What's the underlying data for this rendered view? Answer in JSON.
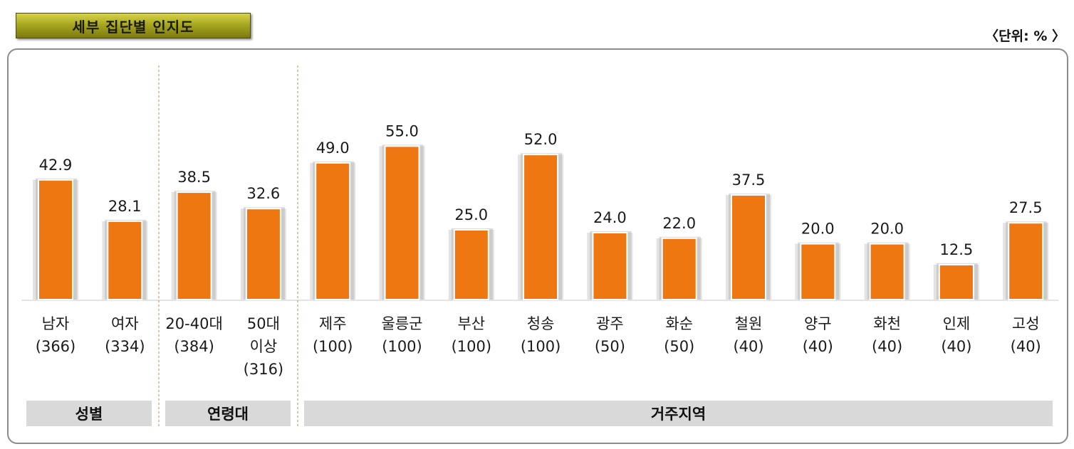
{
  "title": "세부 집단별 인지도",
  "unit_label": "〈단위: % 〉",
  "groups": [
    {
      "label": "성별"
    },
    {
      "label": "연령대"
    },
    {
      "label": "거주지역"
    }
  ],
  "colors": {
    "bar": "#ee7712",
    "bar_shadow": "#b0b0b0",
    "frame": "#8c8c8c",
    "group_box": "#d9d9d9",
    "divider": "#b9a27c"
  },
  "chart_data": {
    "type": "bar",
    "title": "세부 집단별 인지도",
    "ylim": [
      0,
      60
    ],
    "grid": false,
    "categories": [
      {
        "lines": [
          "남자",
          "(366)"
        ],
        "group": "성별"
      },
      {
        "lines": [
          "여자",
          "(334)"
        ],
        "group": "성별"
      },
      {
        "lines": [
          "20-40대",
          "(384)"
        ],
        "group": "연령대"
      },
      {
        "lines": [
          "50대",
          "이상",
          "(316)"
        ],
        "group": "연령대"
      },
      {
        "lines": [
          "제주",
          "(100)"
        ],
        "group": "거주지역"
      },
      {
        "lines": [
          "울릉군",
          "(100)"
        ],
        "group": "거주지역"
      },
      {
        "lines": [
          "부산",
          "(100)"
        ],
        "group": "거주지역"
      },
      {
        "lines": [
          "청송",
          "(100)"
        ],
        "group": "거주지역"
      },
      {
        "lines": [
          "광주",
          "(50)"
        ],
        "group": "거주지역"
      },
      {
        "lines": [
          "화순",
          "(50)"
        ],
        "group": "거주지역"
      },
      {
        "lines": [
          "철원",
          "(40)"
        ],
        "group": "거주지역"
      },
      {
        "lines": [
          "양구",
          "(40)"
        ],
        "group": "거주지역"
      },
      {
        "lines": [
          "화천",
          "(40)"
        ],
        "group": "거주지역"
      },
      {
        "lines": [
          "인제",
          "(40)"
        ],
        "group": "거주지역"
      },
      {
        "lines": [
          "고성",
          "(40)"
        ],
        "group": "거주지역"
      }
    ],
    "values": [
      42.9,
      28.1,
      38.5,
      32.6,
      49.0,
      55.0,
      25.0,
      52.0,
      24.0,
      22.0,
      37.5,
      20.0,
      20.0,
      12.5,
      27.5
    ],
    "value_labels": [
      "42.9",
      "28.1",
      "38.5",
      "32.6",
      "49.0",
      "55.0",
      "25.0",
      "52.0",
      "24.0",
      "22.0",
      "37.5",
      "20.0",
      "20.0",
      "12.5",
      "27.5"
    ]
  }
}
